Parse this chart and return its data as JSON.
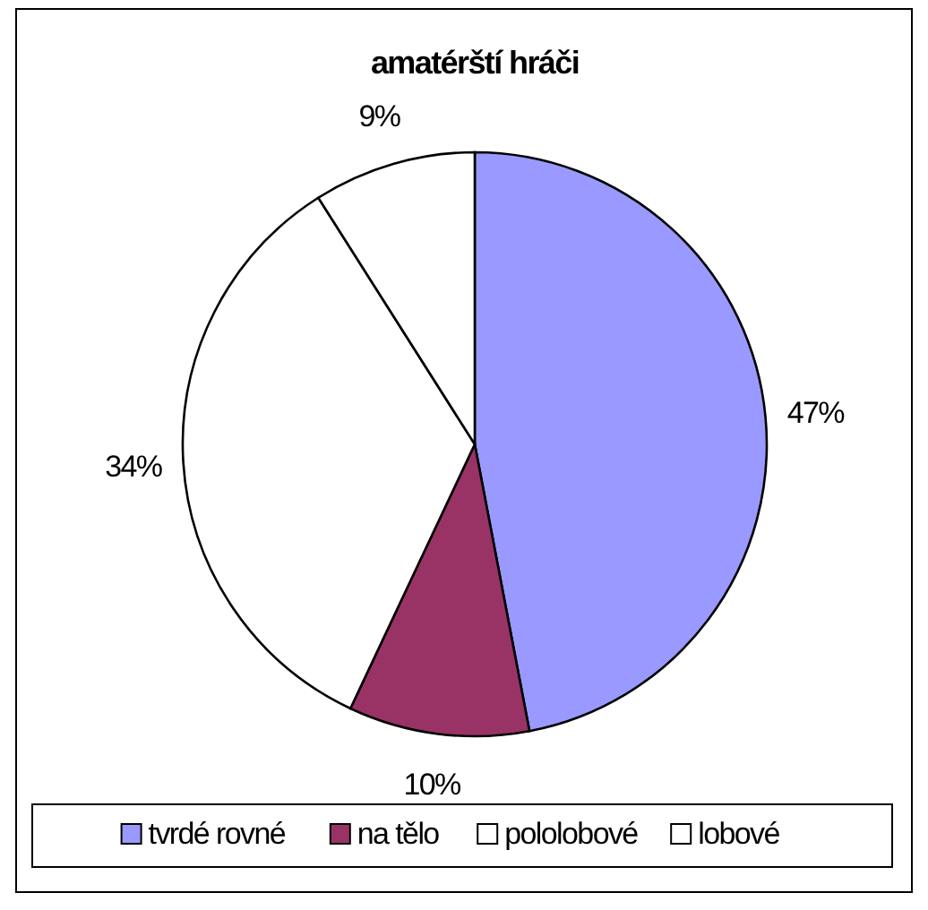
{
  "chart_data": {
    "type": "pie",
    "title": "amatérští hráči",
    "categories": [
      "tvrdé rovné",
      "na tělo",
      "pololobové",
      "lobové"
    ],
    "values": [
      47,
      10,
      34,
      9
    ],
    "colors": [
      "#9999ff",
      "#993366",
      "#ffffff",
      "#ffffff"
    ],
    "value_labels": [
      "47%",
      "10%",
      "34%",
      "9%"
    ],
    "legend": "bottom"
  }
}
